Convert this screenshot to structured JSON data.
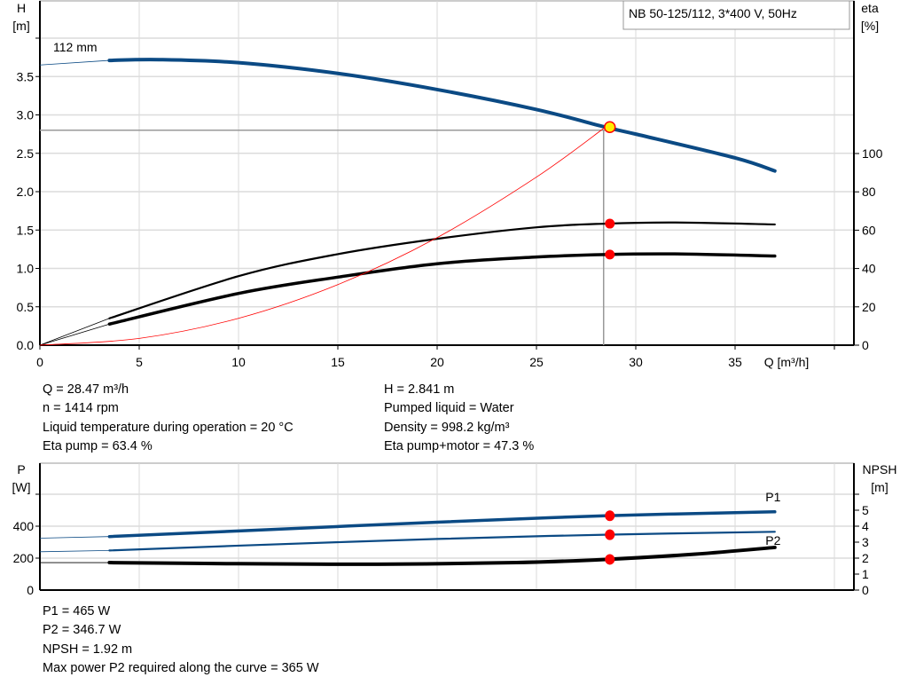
{
  "chart_data": [
    {
      "type": "line",
      "title": "NB 50-125/112, 3*400 V, 50Hz",
      "xlabel": "Q [m³/h]",
      "ylabel": "H\n[m]",
      "y2label": "eta\n[%]",
      "xlim": [
        0,
        40
      ],
      "ylim": [
        0,
        4.0
      ],
      "y2lim": [
        0,
        100
      ],
      "x_ticks": [
        "0",
        "5",
        "10",
        "15",
        "20",
        "25",
        "30",
        "35"
      ],
      "y_ticks": [
        "0.0",
        "0.5",
        "1.0",
        "1.5",
        "2.0",
        "2.5",
        "3.0",
        "3.5"
      ],
      "y2_ticks": [
        "0",
        "20",
        "40",
        "60",
        "80",
        "100"
      ],
      "grid": true,
      "curve_label": "112 mm",
      "series": [
        {
          "key": "head",
          "axis": "H",
          "color": "#0b4a84",
          "x": [
            0,
            3.5,
            6,
            10,
            15,
            20,
            25,
            28.47,
            30,
            35,
            37
          ],
          "y": [
            3.65,
            3.71,
            3.72,
            3.68,
            3.54,
            3.33,
            3.07,
            2.841,
            2.75,
            2.44,
            2.27
          ]
        },
        {
          "key": "eta_pump",
          "axis": "eta",
          "color": "#000000",
          "x": [
            0,
            3.5,
            10,
            15,
            20,
            25,
            28.47,
            32,
            37
          ],
          "y": [
            0,
            14,
            36,
            47.5,
            55.5,
            61.5,
            63.4,
            64,
            63
          ]
        },
        {
          "key": "eta_pump_motor",
          "axis": "eta",
          "color": "#000000",
          "x": [
            0,
            3.5,
            10,
            15,
            20,
            25,
            28.47,
            32,
            37
          ],
          "y": [
            0,
            11,
            27,
            35.5,
            42.5,
            46,
            47.3,
            47.6,
            46.5
          ]
        },
        {
          "key": "system_curve",
          "axis": "H",
          "color": "#ff0000",
          "x": [
            0,
            5,
            10,
            15,
            20,
            25,
            28.47
          ],
          "y": [
            0,
            0.088,
            0.35,
            0.789,
            1.402,
            2.19,
            2.841
          ]
        }
      ],
      "operating_point": {
        "Q": 28.47,
        "H": 2.841,
        "eta_pump": 63.4,
        "eta_pump_motor": 47.3,
        "color": "#ffee00"
      }
    },
    {
      "type": "line",
      "ylabel": "P\n[W]",
      "y2label": "NPSH\n[m]",
      "xlim": [
        0,
        40
      ],
      "ylim": [
        0,
        800
      ],
      "y2lim": [
        0,
        8
      ],
      "y_ticks": [
        "0",
        "200",
        "400"
      ],
      "y2_ticks": [
        "0",
        "1",
        "2",
        "3",
        "4",
        "5"
      ],
      "grid": true,
      "series": [
        {
          "key": "P1",
          "name": "P1",
          "axis": "P",
          "color": "#0b4a84",
          "x": [
            0,
            3.5,
            10,
            20,
            28.47,
            37
          ],
          "y": [
            325,
            335,
            370,
            425,
            465,
            490
          ]
        },
        {
          "key": "P2",
          "name": "P2",
          "axis": "P",
          "color": "#0b4a84",
          "x": [
            0,
            3.5,
            10,
            20,
            28.47,
            37
          ],
          "y": [
            240,
            248,
            278,
            320,
            346.7,
            365
          ]
        },
        {
          "key": "NPSH",
          "axis": "NPSH",
          "color": "#000000",
          "x": [
            0,
            3.5,
            10,
            17,
            24,
            28.47,
            33,
            37
          ],
          "y": [
            1.72,
            1.72,
            1.65,
            1.62,
            1.72,
            1.92,
            2.25,
            2.67
          ]
        }
      ],
      "operating_point": {
        "Q": 28.47,
        "P1": 465,
        "P2": 346.7,
        "NPSH": 1.92
      }
    }
  ],
  "info_top": {
    "left": [
      "Q = 28.47 m³/h",
      "n = 1414 rpm",
      "Liquid temperature during operation = 20 °C",
      "Eta pump = 63.4 %"
    ],
    "right": [
      "H = 2.841 m",
      "Pumped liquid = Water",
      "Density = 998.2 kg/m³",
      "Eta pump+motor = 47.3 %"
    ]
  },
  "info_bottom": [
    "P1 = 465 W",
    "P2 = 346.7 W",
    "NPSH = 1.92 m",
    "Max power P2 required along the curve = 365 W"
  ]
}
